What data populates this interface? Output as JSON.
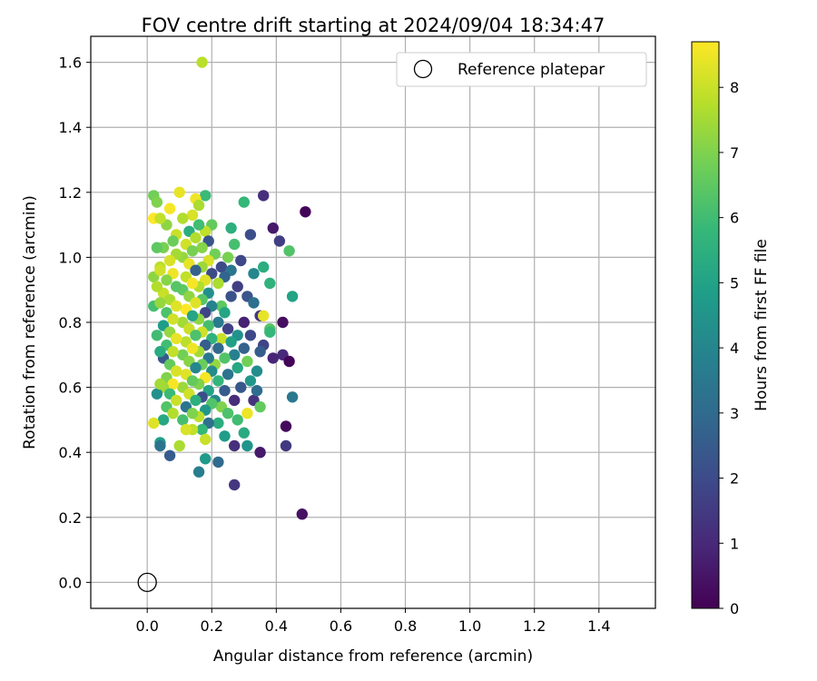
{
  "chart_data": {
    "type": "scatter",
    "title": "FOV centre drift starting at 2024/09/04 18:34:47",
    "xlabel": "Angular distance from reference (arcmin)",
    "ylabel": "Rotation from reference (arcmin)",
    "xlim": [
      -0.175,
      1.575
    ],
    "ylim": [
      -0.08,
      1.68
    ],
    "xticks": [
      0.0,
      0.2,
      0.4,
      0.6,
      0.8,
      1.0,
      1.2,
      1.4
    ],
    "xtick_labels": [
      "0.0",
      "0.2",
      "0.4",
      "0.6",
      "0.8",
      "1.0",
      "1.2",
      "1.4"
    ],
    "yticks": [
      0.0,
      0.2,
      0.4,
      0.6,
      0.8,
      1.0,
      1.2,
      1.4,
      1.6
    ],
    "ytick_labels": [
      "0.0",
      "0.2",
      "0.4",
      "0.6",
      "0.8",
      "1.0",
      "1.2",
      "1.4",
      "1.6"
    ],
    "grid": true,
    "legend": {
      "placement": "top-right",
      "entries": [
        "Reference platepar"
      ]
    },
    "reference_point": {
      "name": "Reference platepar",
      "x": 0.0,
      "y": 0.0
    },
    "colorbar": {
      "label": "Hours from first FF file",
      "range": [
        0,
        8.7
      ],
      "ticks": [
        0,
        1,
        2,
        3,
        4,
        5,
        6,
        7,
        8
      ],
      "tick_labels": [
        "0",
        "1",
        "2",
        "3",
        "4",
        "5",
        "6",
        "7",
        "8"
      ],
      "colormap": "viridis"
    },
    "colormap_stops": [
      "#440154",
      "#482878",
      "#3e4989",
      "#31688e",
      "#26828e",
      "#1f9e89",
      "#35b779",
      "#6ece58",
      "#b5de2b",
      "#fde725"
    ],
    "points": [
      [
        0.17,
        1.6,
        7.8
      ],
      [
        0.49,
        1.14,
        0.1
      ],
      [
        0.36,
        1.19,
        1.2
      ],
      [
        0.39,
        1.09,
        0.6
      ],
      [
        0.41,
        1.05,
        1.6
      ],
      [
        0.44,
        1.02,
        6.3
      ],
      [
        0.38,
        0.92,
        5.6
      ],
      [
        0.45,
        0.88,
        5.0
      ],
      [
        0.42,
        0.8,
        0.3
      ],
      [
        0.38,
        0.78,
        6.4
      ],
      [
        0.38,
        0.77,
        5.8
      ],
      [
        0.36,
        0.73,
        1.8
      ],
      [
        0.35,
        0.71,
        2.6
      ],
      [
        0.42,
        0.7,
        1.0
      ],
      [
        0.39,
        0.69,
        0.9
      ],
      [
        0.44,
        0.68,
        0.1
      ],
      [
        0.34,
        0.65,
        4.2
      ],
      [
        0.45,
        0.57,
        3.5
      ],
      [
        0.33,
        0.56,
        1.3
      ],
      [
        0.35,
        0.54,
        6.6
      ],
      [
        0.43,
        0.48,
        0.2
      ],
      [
        0.43,
        0.42,
        1.5
      ],
      [
        0.35,
        0.4,
        0.6
      ],
      [
        0.48,
        0.21,
        0.4
      ],
      [
        0.3,
        1.17,
        5.8
      ],
      [
        0.32,
        1.07,
        2.1
      ],
      [
        0.29,
        0.99,
        1.9
      ],
      [
        0.33,
        0.95,
        4.0
      ],
      [
        0.36,
        0.97,
        5.4
      ],
      [
        0.28,
        0.91,
        1.6
      ],
      [
        0.31,
        0.88,
        2.3
      ],
      [
        0.33,
        0.86,
        3.2
      ],
      [
        0.35,
        0.82,
        1.4
      ],
      [
        0.36,
        0.82,
        8.4
      ],
      [
        0.3,
        0.8,
        0.8
      ],
      [
        0.28,
        0.76,
        4.4
      ],
      [
        0.32,
        0.76,
        1.9
      ],
      [
        0.3,
        0.72,
        2.7
      ],
      [
        0.27,
        0.7,
        3.8
      ],
      [
        0.31,
        0.68,
        6.8
      ],
      [
        0.28,
        0.66,
        5.2
      ],
      [
        0.32,
        0.62,
        4.6
      ],
      [
        0.29,
        0.6,
        2.4
      ],
      [
        0.34,
        0.59,
        3.1
      ],
      [
        0.27,
        0.56,
        1.1
      ],
      [
        0.31,
        0.52,
        8.5
      ],
      [
        0.28,
        0.5,
        6.0
      ],
      [
        0.3,
        0.46,
        5.3
      ],
      [
        0.31,
        0.42,
        4.5
      ],
      [
        0.27,
        0.42,
        1.2
      ],
      [
        0.27,
        0.3,
        1.4
      ],
      [
        0.26,
        1.09,
        5.5
      ],
      [
        0.27,
        1.04,
        6.1
      ],
      [
        0.25,
        1.0,
        6.9
      ],
      [
        0.23,
        0.97,
        2.0
      ],
      [
        0.26,
        0.96,
        3.4
      ],
      [
        0.24,
        0.94,
        2.8
      ],
      [
        0.22,
        0.92,
        7.6
      ],
      [
        0.26,
        0.88,
        2.2
      ],
      [
        0.23,
        0.85,
        6.5
      ],
      [
        0.24,
        0.83,
        5.1
      ],
      [
        0.22,
        0.8,
        3.6
      ],
      [
        0.25,
        0.78,
        1.7
      ],
      [
        0.23,
        0.75,
        8.0
      ],
      [
        0.26,
        0.74,
        4.9
      ],
      [
        0.22,
        0.72,
        2.9
      ],
      [
        0.24,
        0.69,
        6.3
      ],
      [
        0.21,
        0.67,
        7.3
      ],
      [
        0.25,
        0.64,
        3.3
      ],
      [
        0.22,
        0.62,
        5.7
      ],
      [
        0.24,
        0.59,
        2.5
      ],
      [
        0.21,
        0.56,
        4.1
      ],
      [
        0.23,
        0.54,
        7.0
      ],
      [
        0.25,
        0.52,
        6.2
      ],
      [
        0.22,
        0.49,
        5.4
      ],
      [
        0.24,
        0.45,
        4.8
      ],
      [
        0.22,
        0.37,
        3.0
      ],
      [
        0.18,
        0.38,
        4.7
      ],
      [
        0.16,
        0.34,
        3.7
      ],
      [
        0.18,
        1.19,
        5.9
      ],
      [
        0.2,
        1.1,
        6.6
      ],
      [
        0.18,
        1.08,
        7.9
      ],
      [
        0.19,
        1.05,
        2.3
      ],
      [
        0.17,
        1.03,
        7.1
      ],
      [
        0.21,
        1.01,
        6.8
      ],
      [
        0.19,
        0.99,
        8.2
      ],
      [
        0.17,
        0.97,
        7.4
      ],
      [
        0.2,
        0.95,
        2.0
      ],
      [
        0.18,
        0.93,
        8.3
      ],
      [
        0.16,
        0.91,
        7.7
      ],
      [
        0.19,
        0.89,
        4.3
      ],
      [
        0.17,
        0.87,
        6.4
      ],
      [
        0.2,
        0.85,
        3.9
      ],
      [
        0.18,
        0.83,
        1.8
      ],
      [
        0.16,
        0.81,
        7.2
      ],
      [
        0.19,
        0.79,
        6.1
      ],
      [
        0.17,
        0.77,
        8.1
      ],
      [
        0.2,
        0.75,
        5.6
      ],
      [
        0.18,
        0.73,
        2.6
      ],
      [
        0.16,
        0.71,
        7.5
      ],
      [
        0.19,
        0.69,
        3.5
      ],
      [
        0.17,
        0.67,
        6.7
      ],
      [
        0.2,
        0.65,
        4.2
      ],
      [
        0.18,
        0.63,
        8.6
      ],
      [
        0.16,
        0.61,
        7.0
      ],
      [
        0.19,
        0.59,
        5.0
      ],
      [
        0.17,
        0.57,
        2.1
      ],
      [
        0.2,
        0.55,
        6.3
      ],
      [
        0.18,
        0.53,
        4.6
      ],
      [
        0.16,
        0.51,
        7.8
      ],
      [
        0.19,
        0.49,
        3.2
      ],
      [
        0.17,
        0.47,
        5.8
      ],
      [
        0.18,
        0.44,
        8.0
      ],
      [
        0.15,
        1.18,
        8.5
      ],
      [
        0.16,
        1.16,
        7.6
      ],
      [
        0.14,
        1.13,
        8.2
      ],
      [
        0.16,
        1.1,
        6.0
      ],
      [
        0.13,
        1.08,
        5.4
      ],
      [
        0.15,
        1.06,
        7.7
      ],
      [
        0.12,
        1.04,
        8.1
      ],
      [
        0.14,
        1.02,
        6.9
      ],
      [
        0.11,
        1.0,
        7.3
      ],
      [
        0.13,
        0.98,
        8.4
      ],
      [
        0.15,
        0.96,
        2.7
      ],
      [
        0.12,
        0.94,
        7.9
      ],
      [
        0.14,
        0.92,
        8.6
      ],
      [
        0.11,
        0.9,
        6.5
      ],
      [
        0.13,
        0.88,
        7.2
      ],
      [
        0.15,
        0.86,
        8.3
      ],
      [
        0.12,
        0.84,
        8.7
      ],
      [
        0.14,
        0.82,
        5.1
      ],
      [
        0.11,
        0.8,
        7.5
      ],
      [
        0.13,
        0.78,
        8.0
      ],
      [
        0.15,
        0.76,
        6.2
      ],
      [
        0.12,
        0.74,
        7.8
      ],
      [
        0.14,
        0.72,
        8.5
      ],
      [
        0.11,
        0.7,
        6.8
      ],
      [
        0.13,
        0.68,
        7.1
      ],
      [
        0.15,
        0.66,
        4.0
      ],
      [
        0.12,
        0.64,
        8.3
      ],
      [
        0.14,
        0.62,
        6.6
      ],
      [
        0.11,
        0.6,
        7.4
      ],
      [
        0.13,
        0.58,
        8.1
      ],
      [
        0.15,
        0.56,
        5.5
      ],
      [
        0.12,
        0.54,
        3.4
      ],
      [
        0.14,
        0.52,
        7.0
      ],
      [
        0.11,
        0.5,
        6.1
      ],
      [
        0.14,
        0.47,
        7.9
      ],
      [
        0.12,
        0.47,
        8.2
      ],
      [
        0.1,
        0.42,
        7.6
      ],
      [
        0.1,
        1.2,
        8.4
      ],
      [
        0.11,
        1.12,
        7.7
      ],
      [
        0.09,
        1.07,
        8.0
      ],
      [
        0.07,
        1.15,
        8.6
      ],
      [
        0.06,
        1.1,
        7.2
      ],
      [
        0.08,
        1.05,
        6.7
      ],
      [
        0.05,
        1.03,
        6.9
      ],
      [
        0.09,
        1.01,
        7.5
      ],
      [
        0.07,
        0.99,
        8.2
      ],
      [
        0.04,
        0.97,
        7.8
      ],
      [
        0.08,
        0.95,
        8.5
      ],
      [
        0.06,
        0.93,
        7.1
      ],
      [
        0.09,
        0.91,
        6.4
      ],
      [
        0.05,
        0.89,
        8.0
      ],
      [
        0.07,
        0.87,
        7.6
      ],
      [
        0.09,
        0.85,
        8.3
      ],
      [
        0.06,
        0.83,
        6.2
      ],
      [
        0.08,
        0.81,
        8.1
      ],
      [
        0.05,
        0.79,
        4.8
      ],
      [
        0.07,
        0.77,
        7.3
      ],
      [
        0.09,
        0.75,
        8.4
      ],
      [
        0.06,
        0.73,
        6.0
      ],
      [
        0.08,
        0.71,
        7.9
      ],
      [
        0.05,
        0.69,
        2.4
      ],
      [
        0.07,
        0.67,
        6.6
      ],
      [
        0.09,
        0.65,
        8.2
      ],
      [
        0.06,
        0.63,
        7.0
      ],
      [
        0.08,
        0.61,
        8.6
      ],
      [
        0.05,
        0.6,
        7.4
      ],
      [
        0.07,
        0.58,
        5.9
      ],
      [
        0.09,
        0.56,
        8.0
      ],
      [
        0.06,
        0.54,
        6.3
      ],
      [
        0.08,
        0.52,
        7.7
      ],
      [
        0.05,
        0.5,
        5.2
      ],
      [
        0.07,
        0.39,
        2.5
      ],
      [
        0.04,
        0.43,
        4.9
      ],
      [
        0.04,
        0.42,
        3.3
      ],
      [
        0.02,
        1.19,
        6.8
      ],
      [
        0.03,
        1.17,
        7.0
      ],
      [
        0.02,
        1.12,
        8.7
      ],
      [
        0.04,
        1.12,
        7.9
      ],
      [
        0.03,
        1.03,
        6.5
      ],
      [
        0.02,
        0.94,
        7.2
      ],
      [
        0.04,
        0.96,
        8.1
      ],
      [
        0.03,
        0.91,
        7.7
      ],
      [
        0.02,
        0.85,
        6.1
      ],
      [
        0.04,
        0.86,
        7.3
      ],
      [
        0.03,
        0.76,
        6.0
      ],
      [
        0.04,
        0.71,
        5.3
      ],
      [
        0.03,
        0.58,
        4.4
      ],
      [
        0.04,
        0.61,
        7.5
      ],
      [
        0.02,
        0.49,
        8.3
      ]
    ]
  }
}
